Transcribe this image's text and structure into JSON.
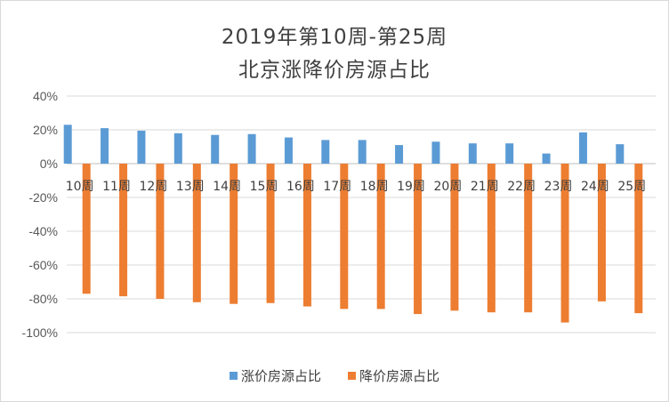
{
  "chart_data": {
    "type": "bar",
    "title": "2019年第10周-第25周",
    "subtitle": "北京涨降价房源占比",
    "categories": [
      "10周",
      "11周",
      "12周",
      "13周",
      "14周",
      "15周",
      "16周",
      "17周",
      "18周",
      "19周",
      "20周",
      "21周",
      "22周",
      "23周",
      "24周",
      "25周"
    ],
    "series": [
      {
        "name": "涨价房源占比",
        "color": "#5b9bd5",
        "values": [
          0.23,
          0.21,
          0.195,
          0.18,
          0.17,
          0.175,
          0.155,
          0.14,
          0.14,
          0.11,
          0.13,
          0.12,
          0.12,
          0.06,
          0.185,
          0.115
        ]
      },
      {
        "name": "降价房源占比",
        "color": "#ed7d31",
        "values": [
          -0.77,
          -0.785,
          -0.8,
          -0.82,
          -0.83,
          -0.825,
          -0.845,
          -0.86,
          -0.86,
          -0.89,
          -0.87,
          -0.88,
          -0.88,
          -0.94,
          -0.815,
          -0.885
        ]
      }
    ],
    "ylim": [
      -1.0,
      0.4
    ],
    "yticks": [
      0.4,
      0.2,
      0,
      -0.2,
      -0.4,
      -0.6,
      -0.8,
      -1.0
    ],
    "ytick_labels": [
      "40%",
      "20%",
      "0%",
      "-20%",
      "-40%",
      "-60%",
      "-80%",
      "-100%"
    ],
    "grid": true,
    "legend_position": "bottom"
  }
}
